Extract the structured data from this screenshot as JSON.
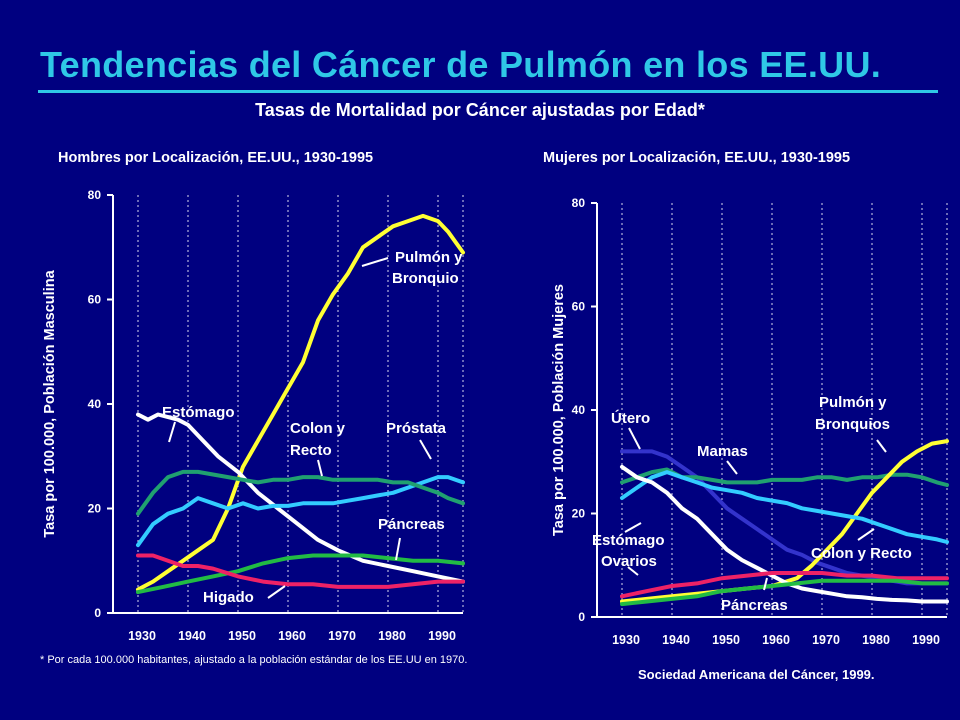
{
  "title": "Tendencias del Cáncer de Pulmón en los EE.UU.",
  "subtitle": "Tasas de Mortalidad por Cáncer ajustadas por Edad*",
  "footnote": "* Por cada 100.000 habitantes, ajustado a la población estándar de los EE.UU en 1970.",
  "source": "Sociedad Americana del Cáncer, 1999.",
  "colors": {
    "background": "#000080",
    "title": "#2fc8e6",
    "yellow": "#ffff33",
    "cyan": "#33ccff",
    "green": "#20a070",
    "brightgreen": "#22bb44",
    "white": "#ffffff",
    "red": "#ee2266",
    "blue": "#3333cc"
  },
  "chart_data": [
    {
      "type": "line",
      "title": "Hombres por Localización, EE.UU., 1930-1995",
      "ylabel": "Tasa por 100.000, Población Masculina",
      "xlabel": "",
      "xlim": [
        1925,
        1995
      ],
      "ylim": [
        0,
        80
      ],
      "yticks": [
        0,
        20,
        40,
        60,
        80
      ],
      "xticks": [
        1930,
        1940,
        1950,
        1960,
        1970,
        1980,
        1990
      ],
      "grid": "vertical",
      "series": [
        {
          "name": "Pulmón y Bronquio",
          "color": "yellow",
          "x": [
            1930,
            1933,
            1936,
            1939,
            1942,
            1945,
            1948,
            1951,
            1954,
            1957,
            1960,
            1963,
            1966,
            1969,
            1972,
            1975,
            1978,
            1981,
            1984,
            1987,
            1990,
            1992,
            1995
          ],
          "y": [
            4.5,
            6,
            8,
            10,
            12,
            14,
            20,
            28,
            33,
            38,
            43,
            48,
            56,
            61,
            65,
            70,
            72,
            74,
            75,
            76,
            75,
            73,
            69
          ]
        },
        {
          "name": "Estómago",
          "color": "white",
          "x": [
            1930,
            1932,
            1934,
            1936,
            1938,
            1940,
            1943,
            1946,
            1950,
            1954,
            1958,
            1962,
            1966,
            1970,
            1975,
            1980,
            1985,
            1990,
            1995
          ],
          "y": [
            38,
            37,
            38,
            37.5,
            37,
            36,
            33,
            30,
            27,
            23,
            20,
            17,
            14,
            12,
            10,
            9,
            8,
            7,
            6
          ]
        },
        {
          "name": "Colon y Recto",
          "color": "cyan",
          "x": [
            1930,
            1933,
            1936,
            1939,
            1942,
            1945,
            1948,
            1951,
            1954,
            1957,
            1960,
            1963,
            1966,
            1969,
            1972,
            1975,
            1978,
            1981,
            1984,
            1987,
            1990,
            1992,
            1995
          ],
          "y": [
            13,
            17,
            19,
            20,
            22,
            21,
            20,
            21,
            20,
            20.5,
            20.5,
            21,
            21,
            21,
            21.5,
            22,
            22.5,
            23,
            24,
            25,
            26,
            26,
            25
          ]
        },
        {
          "name": "Próstata",
          "color": "green",
          "x": [
            1930,
            1933,
            1936,
            1939,
            1942,
            1945,
            1948,
            1951,
            1954,
            1957,
            1960,
            1963,
            1966,
            1969,
            1972,
            1975,
            1978,
            1981,
            1984,
            1987,
            1990,
            1992,
            1995
          ],
          "y": [
            19,
            23,
            26,
            27,
            27,
            26.5,
            26,
            25.5,
            25,
            25.5,
            25.5,
            26,
            26,
            25.5,
            25.5,
            25.5,
            25.5,
            25,
            25,
            24,
            23,
            22,
            21
          ]
        },
        {
          "name": "Páncreas",
          "color": "brightgreen",
          "x": [
            1930,
            1935,
            1940,
            1945,
            1950,
            1955,
            1960,
            1965,
            1970,
            1975,
            1980,
            1985,
            1990,
            1995
          ],
          "y": [
            4,
            5,
            6,
            7,
            8,
            9.5,
            10.5,
            11,
            11,
            11,
            10.5,
            10,
            10,
            9.5
          ]
        },
        {
          "name": "Higado",
          "color": "red",
          "x": [
            1930,
            1933,
            1936,
            1939,
            1942,
            1945,
            1950,
            1955,
            1960,
            1965,
            1970,
            1975,
            1980,
            1985,
            1990,
            1995
          ],
          "y": [
            11,
            11,
            10,
            9,
            9,
            8.5,
            7,
            6,
            5.5,
            5.5,
            5,
            5,
            5,
            5.5,
            6,
            6
          ]
        }
      ],
      "annotations": [
        "Pulmón y Bronquio",
        "Estómago",
        "Colon y Recto",
        "Próstata",
        "Páncreas",
        "Higado"
      ]
    },
    {
      "type": "line",
      "title": "Mujeres por Localización, EE.UU., 1930-1995",
      "ylabel": "Tasa por 100.000, Población Mujeres",
      "xlabel": "",
      "xlim": [
        1925,
        1995
      ],
      "ylim": [
        0,
        80
      ],
      "yticks": [
        0,
        20,
        40,
        60,
        80
      ],
      "xticks": [
        1930,
        1940,
        1950,
        1960,
        1970,
        1980,
        1990
      ],
      "grid": "vertical",
      "series": [
        {
          "name": "Útero",
          "color": "blue",
          "x": [
            1930,
            1933,
            1936,
            1939,
            1942,
            1945,
            1948,
            1951,
            1954,
            1957,
            1960,
            1963,
            1966,
            1969,
            1972,
            1975,
            1978,
            1981,
            1984,
            1987,
            1990,
            1993,
            1995
          ],
          "y": [
            32,
            32,
            32,
            31,
            29,
            27,
            24,
            21,
            19,
            17,
            15,
            13,
            12,
            10.5,
            9.5,
            8.5,
            8,
            7.5,
            7,
            6.5,
            6.5,
            6.5,
            6.5
          ]
        },
        {
          "name": "Mamas",
          "color": "green",
          "x": [
            1930,
            1933,
            1936,
            1939,
            1942,
            1945,
            1948,
            1951,
            1954,
            1957,
            1960,
            1963,
            1966,
            1969,
            1972,
            1975,
            1978,
            1981,
            1984,
            1987,
            1990,
            1993,
            1995
          ],
          "y": [
            26,
            27,
            28,
            28.5,
            27,
            27,
            26.5,
            26,
            26,
            26,
            26.5,
            26.5,
            26.5,
            27,
            27,
            26.5,
            27,
            27,
            27.5,
            27.5,
            27,
            26,
            25.5
          ]
        },
        {
          "name": "Pulmón y Bronquios",
          "color": "yellow",
          "x": [
            1930,
            1935,
            1940,
            1945,
            1950,
            1955,
            1960,
            1965,
            1968,
            1971,
            1974,
            1977,
            1980,
            1983,
            1986,
            1989,
            1992,
            1995
          ],
          "y": [
            3,
            3.5,
            4,
            4.5,
            5,
            5.5,
            6,
            7.5,
            10,
            13,
            16,
            20,
            24,
            27,
            30,
            32,
            33.5,
            34
          ]
        },
        {
          "name": "Colon y Recto",
          "color": "cyan",
          "x": [
            1930,
            1933,
            1936,
            1939,
            1942,
            1945,
            1948,
            1951,
            1954,
            1957,
            1960,
            1963,
            1966,
            1969,
            1972,
            1975,
            1978,
            1981,
            1984,
            1987,
            1990,
            1993,
            1995
          ],
          "y": [
            23,
            25,
            27,
            28,
            27,
            26,
            25,
            24.5,
            24,
            23,
            22.5,
            22,
            21,
            20.5,
            20,
            19.5,
            19,
            18,
            17,
            16,
            15.5,
            15,
            14.5
          ]
        },
        {
          "name": "Estómago",
          "color": "white",
          "x": [
            1930,
            1933,
            1936,
            1939,
            1942,
            1945,
            1948,
            1951,
            1954,
            1957,
            1960,
            1963,
            1966,
            1969,
            1972,
            1975,
            1978,
            1981,
            1984,
            1987,
            1990,
            1995
          ],
          "y": [
            29,
            27,
            26,
            24,
            21,
            19,
            16,
            13,
            11,
            9.5,
            8,
            6.5,
            5.5,
            5,
            4.5,
            4,
            3.8,
            3.5,
            3.3,
            3.2,
            3,
            3
          ]
        },
        {
          "name": "Ovarios",
          "color": "red",
          "x": [
            1930,
            1935,
            1940,
            1945,
            1950,
            1955,
            1960,
            1965,
            1970,
            1975,
            1980,
            1985,
            1990,
            1995
          ],
          "y": [
            4,
            5,
            6,
            6.5,
            7.5,
            8,
            8.5,
            8.5,
            8.5,
            8,
            8,
            7.5,
            7.5,
            7.5
          ]
        },
        {
          "name": "Páncreas",
          "color": "brightgreen",
          "x": [
            1930,
            1935,
            1940,
            1945,
            1950,
            1955,
            1960,
            1965,
            1970,
            1975,
            1980,
            1985,
            1990,
            1995
          ],
          "y": [
            2.5,
            3,
            3.5,
            4,
            5,
            5.5,
            6,
            6.5,
            7,
            7,
            7,
            7,
            6.5,
            6.5
          ]
        }
      ],
      "annotations": [
        "Útero",
        "Mamas",
        "Pulmón y Bronquios",
        "Colon y Recto",
        "Estómago",
        "Ovarios",
        "Páncreas"
      ]
    }
  ]
}
